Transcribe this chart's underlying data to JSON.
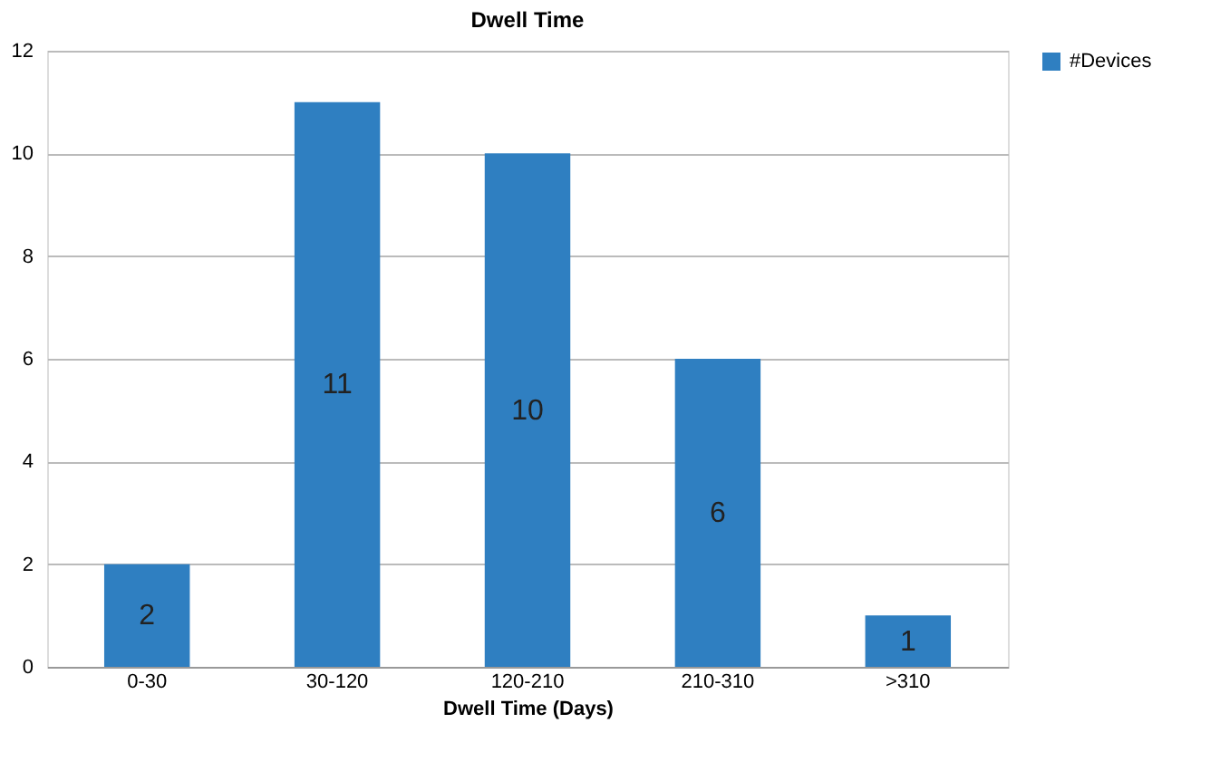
{
  "chart_data": {
    "type": "bar",
    "title": "Dwell Time",
    "xlabel": "Dwell Time (Days)",
    "categories": [
      "0-30",
      "30-120",
      "120-210",
      "210-310",
      ">310"
    ],
    "series": [
      {
        "name": "#Devices",
        "color": "#2f7fc1",
        "values": [
          2,
          11,
          10,
          6,
          1
        ]
      }
    ],
    "ylim": [
      0,
      12
    ],
    "yticks": [
      0,
      2,
      4,
      6,
      8,
      10,
      12
    ],
    "grid": "y",
    "legend": "right",
    "data_labels": true
  }
}
